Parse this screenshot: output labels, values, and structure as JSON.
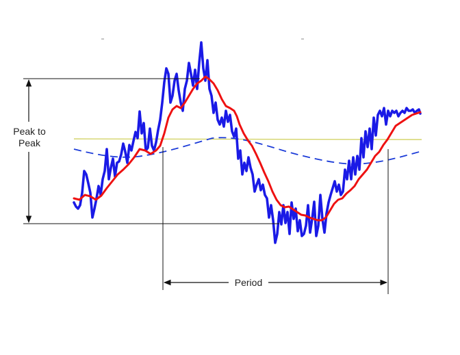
{
  "labels": {
    "amplitude_line1": "Peak to",
    "amplitude_line2": "Peak",
    "period": "Period"
  },
  "colors": {
    "raw_signal": "#1a1ae6",
    "smoothed_signal": "#ee1111",
    "baseline": "#d4d46a",
    "sine_reference": "#1a3ad8",
    "annotation": "#111111"
  }
}
